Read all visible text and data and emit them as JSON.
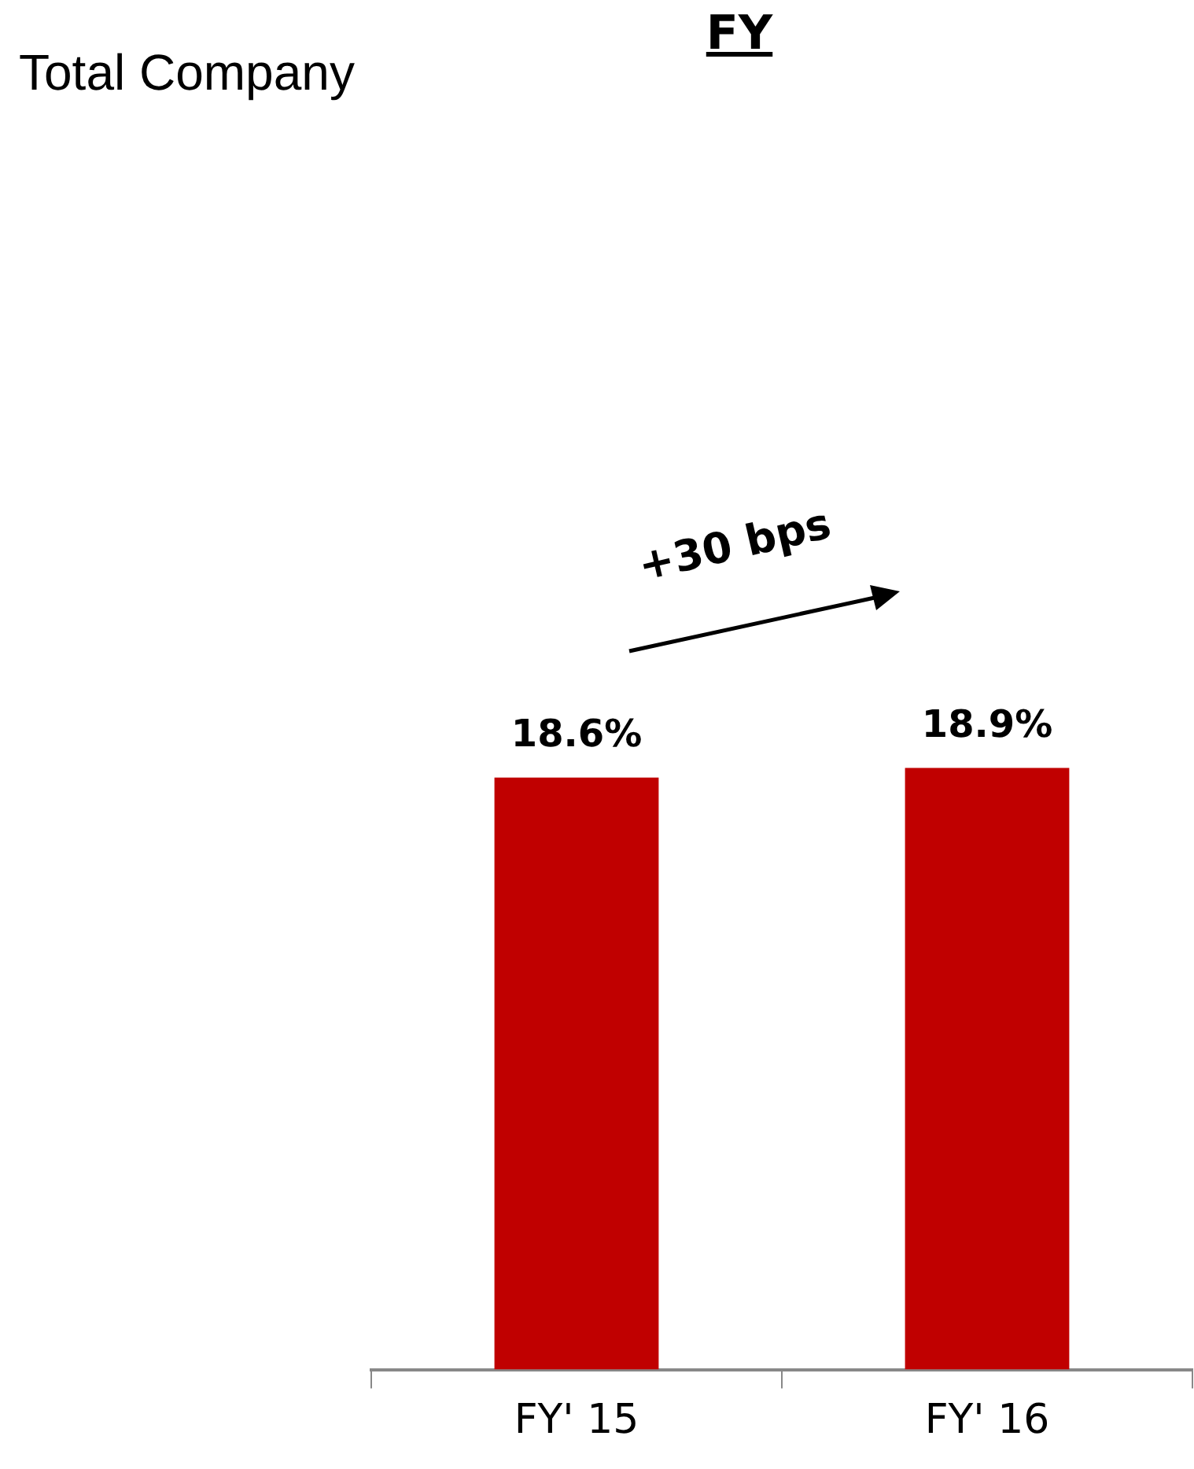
{
  "chart_data": {
    "type": "bar",
    "title": "FY",
    "categories": [
      "FY' 15",
      "FY' 16"
    ],
    "values": [
      18.6,
      18.9
    ],
    "value_labels": [
      "18.6%",
      "18.9%"
    ],
    "color": "#c00000",
    "tick_labels": "x",
    "grid": false,
    "legend": false,
    "annotations": [
      "Total Company",
      "+30 bps"
    ]
  }
}
